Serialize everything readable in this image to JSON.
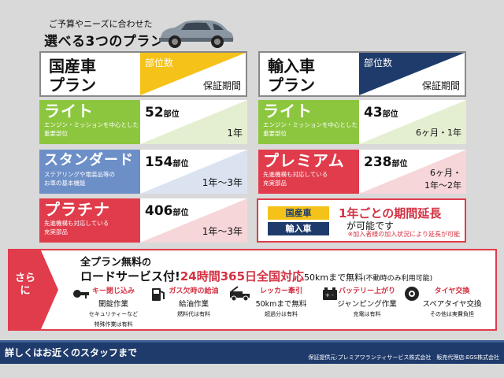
{
  "header": {
    "subtitle": "ご予算やニーズに合わせた",
    "title": "選べる3つのプラン"
  },
  "domestic": {
    "plan_name_1": "国産車",
    "plan_name_2": "プラン",
    "col_parts": "部位数",
    "col_period": "保証期間",
    "rows": [
      {
        "name": "ライト",
        "desc1": "エンジン・ミッションを中心とした",
        "desc2": "重要部位",
        "count": "52",
        "unit": "部位",
        "period1": "1年",
        "period2": ""
      },
      {
        "name": "スタンダード",
        "desc1": "ステアリングや電装品等の",
        "desc2": "お車の基本機能",
        "count": "154",
        "unit": "部位",
        "period1": "1年～3年",
        "period2": ""
      },
      {
        "name": "プラチナ",
        "desc1": "先進機構も対応している",
        "desc2": "充実部品",
        "count": "406",
        "unit": "部位",
        "period1": "1年～3年",
        "period2": ""
      }
    ]
  },
  "imported": {
    "plan_name_1": "輸入車",
    "plan_name_2": "プラン",
    "col_parts": "部位数",
    "col_period": "保証期間",
    "rows": [
      {
        "name": "ライト",
        "desc1": "エンジン・ミッションを中心とした",
        "desc2": "重要部位",
        "count": "43",
        "unit": "部位",
        "period1": "6ヶ月・1年",
        "period2": ""
      },
      {
        "name": "プレミアム",
        "desc1": "先進機構も対応している",
        "desc2": "充実部品",
        "count": "238",
        "unit": "部位",
        "period1": "6ヶ月・",
        "period2": "1年～2年"
      }
    ]
  },
  "extension": {
    "tag_domestic": "国産車",
    "tag_imported": "輸入車",
    "main": "1年ごとの期間延長",
    "sub": "が可能です",
    "note": "※加入者様の加入状況により延長が可能"
  },
  "service": {
    "arrow": "さらに",
    "line1_a": "全プラン無料",
    "line1_b": "の",
    "line2_a": "ロードサービス付!",
    "line2_b": "24時間365日全国対応",
    "line2_c": "50kmまで無料",
    "line2_d": "(不動時のみ利用可能)",
    "features": [
      {
        "icon": "key-icon",
        "head": "キー閉じ込み",
        "main": "開錠作業",
        "sub1": "セキュリティーなど",
        "sub2": "特殊作業は有料"
      },
      {
        "icon": "fuel-icon",
        "head": "ガス欠時の給油",
        "main": "給油作業",
        "sub1": "燃料代は有料",
        "sub2": ""
      },
      {
        "icon": "tow-truck-icon",
        "head": "レッカー牽引",
        "main": "50kmまで無料",
        "sub1": "超過分は有料",
        "sub2": ""
      },
      {
        "icon": "battery-icon",
        "head": "バッテリー上がり",
        "main": "ジャンピング作業",
        "sub1": "充電は有料",
        "sub2": ""
      },
      {
        "icon": "tire-icon",
        "head": "タイヤ交換",
        "main": "スペアタイヤ交換",
        "sub1": "その他は実費負担",
        "sub2": ""
      }
    ]
  },
  "footer": {
    "left": "詳しくはお近くのスタッフまで",
    "right": "保証提供元:プレミアワランティサービス株式会社　販売代理店:EGS株式会社"
  },
  "colors": {
    "green": "#8cc63f",
    "blue": "#6d8fc8",
    "red": "#e03c4c",
    "yellow": "#f5c21a",
    "navy": "#1f3b6b"
  }
}
